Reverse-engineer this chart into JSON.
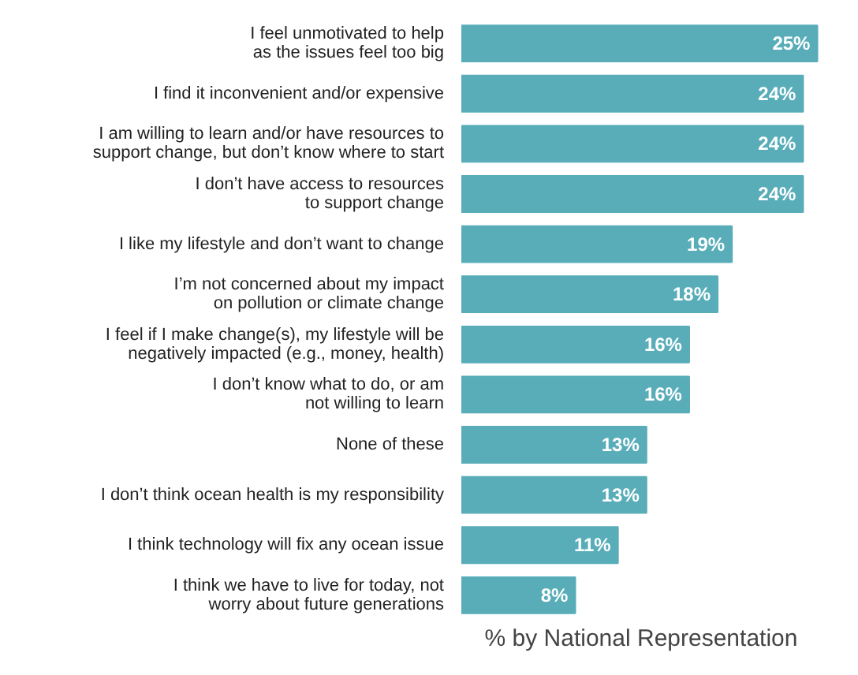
{
  "chart_data": {
    "type": "bar",
    "orientation": "horizontal",
    "xlabel": "% by National Representation",
    "categories": [
      "I feel unmotivated to help\nas the issues feel too big",
      "I find it inconvenient and/or expensive",
      "I am willing to learn and/or have resources to\nsupport change, but don’t know where to start",
      "I don’t have access to resources\nto support change",
      "I like my lifestyle and don’t want to change",
      "I’m not concerned about my impact\non pollution or climate change",
      "I feel if I make change(s), my lifestyle will be\nnegatively impacted (e.g., money, health)",
      "I don’t know what to do, or am\nnot willing to learn",
      "None of these",
      "I don’t think ocean health is my responsibility",
      "I think technology will fix any ocean issue",
      "I think we have to live for today, not\nworry about future generations"
    ],
    "values": [
      25,
      24,
      24,
      24,
      19,
      18,
      16,
      16,
      13,
      13,
      11,
      8
    ],
    "value_labels": [
      "25%",
      "24%",
      "24%",
      "24%",
      "19%",
      "18%",
      "16%",
      "16%",
      "13%",
      "13%",
      "11%",
      "8%"
    ],
    "color": "#58adb9",
    "grid": false
  }
}
